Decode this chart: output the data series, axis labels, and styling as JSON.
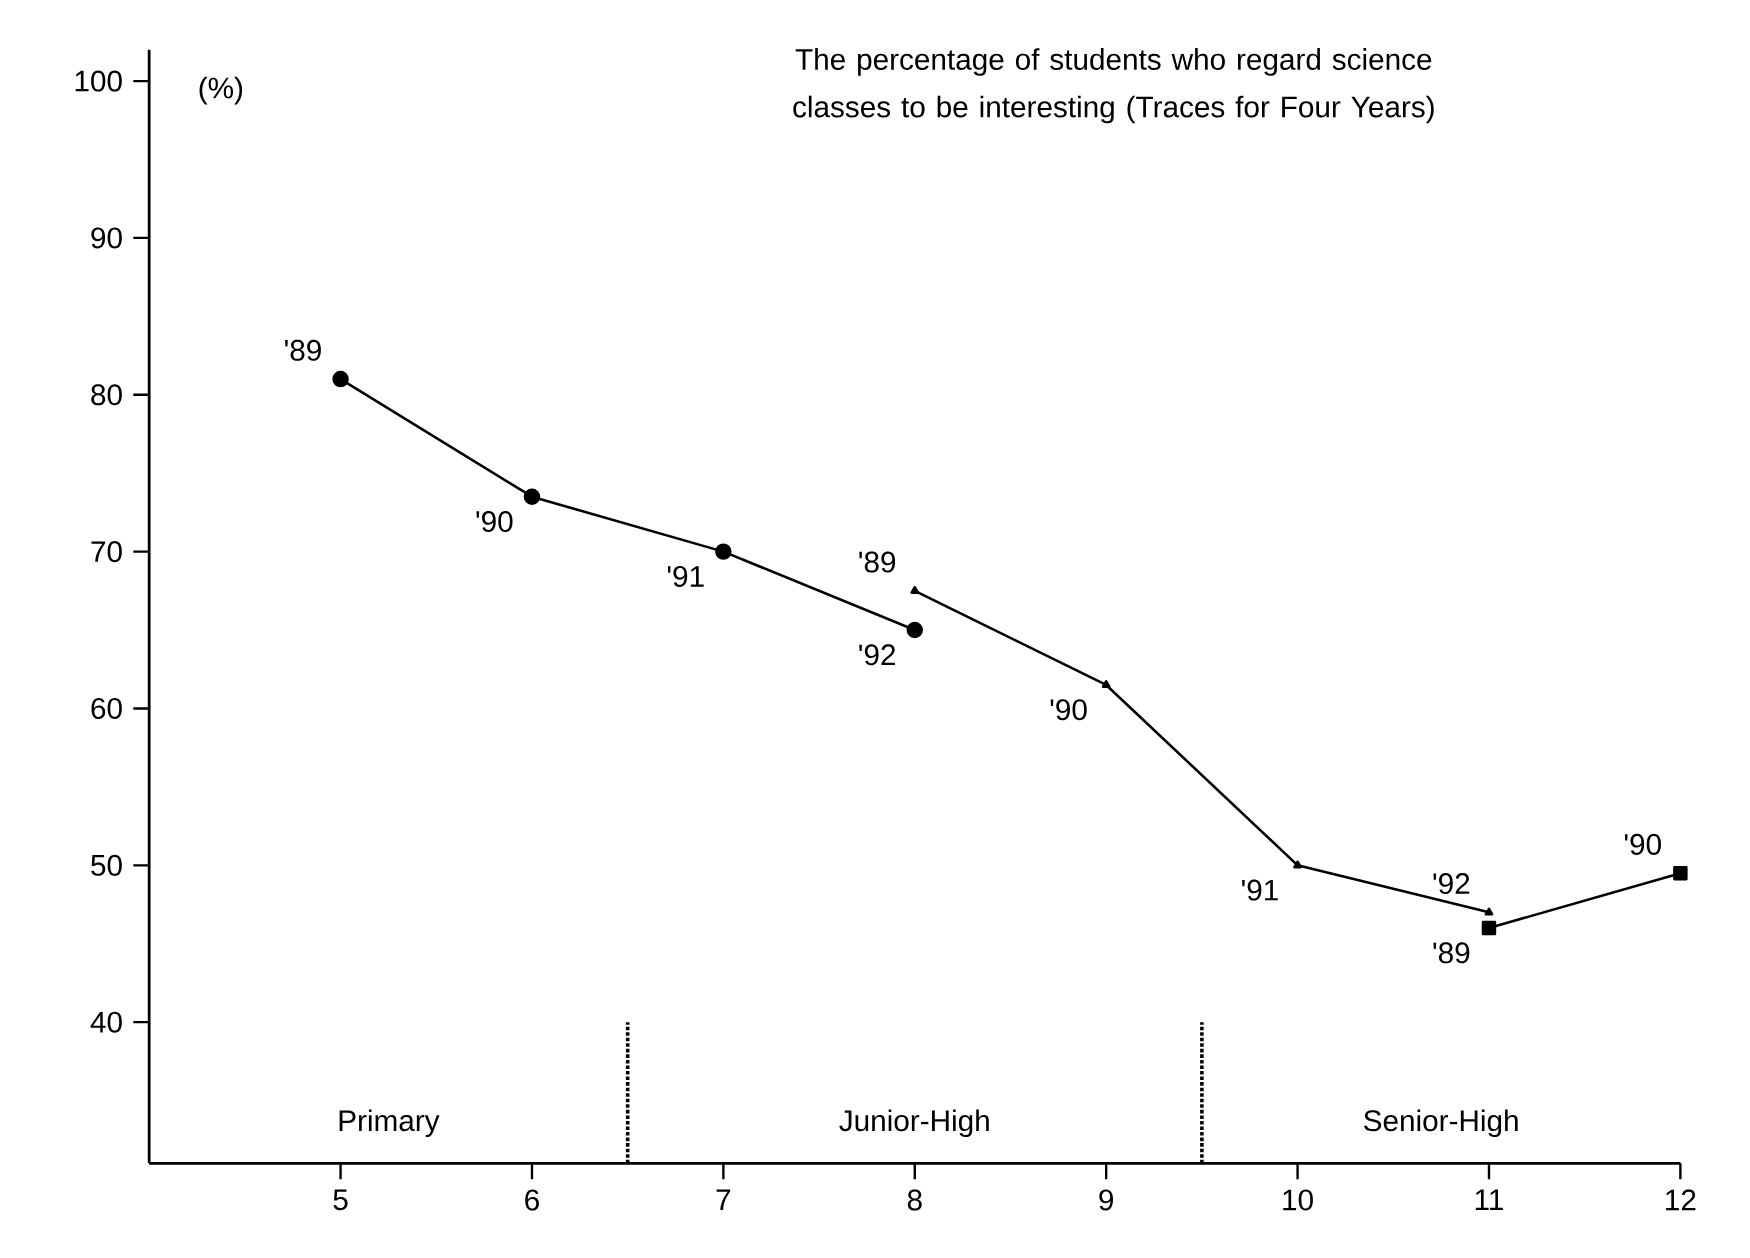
{
  "chart_data": {
    "type": "line",
    "title": "The percentage of students who regard science classes to be interesting (Traces for Four Years)",
    "ylabel": "(%)",
    "x": [
      5,
      6,
      7,
      8,
      9,
      10,
      11,
      12
    ],
    "xlim": [
      4,
      12
    ],
    "xticks": [
      5,
      6,
      7,
      8,
      9,
      10,
      11,
      12
    ],
    "ylim": [
      31,
      102
    ],
    "yticks": [
      40,
      50,
      60,
      70,
      80,
      90,
      100
    ],
    "series": [
      {
        "color": "#000000",
        "marker": "circle",
        "values": [
          81,
          73.5,
          70,
          65,
          null,
          null,
          null,
          null
        ]
      },
      {
        "color": "#000000",
        "marker": "triangle",
        "values": [
          null,
          null,
          null,
          67.5,
          61.5,
          50,
          47,
          null
        ]
      },
      {
        "color": "#000000",
        "marker": "square",
        "values": [
          null,
          null,
          null,
          null,
          null,
          null,
          46,
          49.5
        ]
      }
    ],
    "line_style": "solid",
    "grid": false,
    "ref_lines": [
      {
        "axis": "x",
        "value": 6.5,
        "line_style": "dotted"
      },
      {
        "axis": "x",
        "value": 9.5,
        "line_style": "dotted"
      }
    ],
    "annotations": [
      "Primary",
      "Junior-High",
      "Senior-High",
      {
        "text": "'89",
        "x": 5,
        "y": 81
      },
      {
        "text": "'90",
        "x": 6,
        "y": 73.5
      },
      {
        "text": "'91",
        "x": 7,
        "y": 70
      },
      {
        "text": "'92",
        "x": 8,
        "y": 65
      },
      {
        "text": "'89",
        "x": 8,
        "y": 67.5
      },
      {
        "text": "'90",
        "x": 9,
        "y": 61.5
      },
      {
        "text": "'91",
        "x": 10,
        "y": 50
      },
      {
        "text": "'92",
        "x": 11,
        "y": 47
      },
      {
        "text": "'89",
        "x": 11,
        "y": 46
      },
      {
        "text": "'90",
        "x": 12,
        "y": 49.5
      }
    ]
  }
}
